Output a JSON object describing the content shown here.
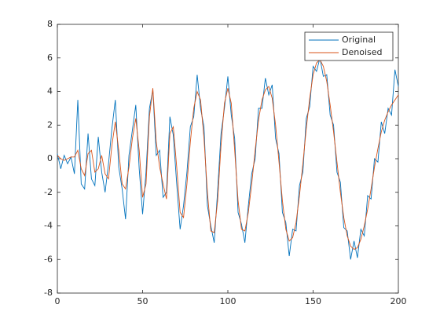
{
  "chart_data": {
    "type": "line",
    "x": [
      0,
      2,
      4,
      6,
      8,
      10,
      12,
      14,
      16,
      18,
      20,
      22,
      24,
      26,
      28,
      30,
      32,
      34,
      36,
      38,
      40,
      42,
      44,
      46,
      48,
      50,
      52,
      54,
      56,
      58,
      60,
      62,
      64,
      66,
      68,
      70,
      72,
      74,
      76,
      78,
      80,
      82,
      84,
      86,
      88,
      90,
      92,
      94,
      96,
      98,
      100,
      102,
      104,
      106,
      108,
      110,
      112,
      114,
      116,
      118,
      120,
      122,
      124,
      126,
      128,
      130,
      132,
      134,
      136,
      138,
      140,
      142,
      144,
      146,
      148,
      150,
      152,
      154,
      156,
      158,
      160,
      162,
      164,
      166,
      168,
      170,
      172,
      174,
      176,
      178,
      180,
      182,
      184,
      186,
      188,
      190,
      192,
      194,
      196,
      198,
      200
    ],
    "series": [
      {
        "name": "Original",
        "color": "#0072bd",
        "values": [
          0.3,
          -0.6,
          0.2,
          -0.3,
          0.1,
          -0.9,
          3.5,
          -1.5,
          -1.8,
          1.5,
          -1.2,
          -1.6,
          1.3,
          -0.8,
          -2.0,
          -0.3,
          1.8,
          3.5,
          -0.5,
          -1.8,
          -3.6,
          0.2,
          1.7,
          3.2,
          -0.6,
          -3.3,
          -0.8,
          3.0,
          4.1,
          0.2,
          0.5,
          -2.3,
          -2.0,
          2.5,
          1.4,
          -1.5,
          -4.2,
          -2.8,
          -0.8,
          1.9,
          2.5,
          5.0,
          3.0,
          1.9,
          -2.8,
          -4.0,
          -5.0,
          -1.9,
          1.5,
          3.0,
          4.9,
          2.6,
          1.2,
          -3.2,
          -3.9,
          -5.0,
          -2.8,
          -0.9,
          0.0,
          3.0,
          3.0,
          4.8,
          3.8,
          4.4,
          1.2,
          0.3,
          -3.2,
          -3.8,
          -5.8,
          -4.2,
          -4.3,
          -1.6,
          -0.8,
          2.4,
          3.1,
          5.5,
          5.2,
          6.0,
          4.9,
          5.0,
          2.6,
          2.0,
          -0.8,
          -1.4,
          -4.1,
          -4.3,
          -6.0,
          -4.9,
          -5.9,
          -4.2,
          -4.6,
          -2.2,
          -2.4,
          0.0,
          -0.2,
          2.2,
          1.5,
          3.0,
          2.6,
          5.3,
          4.3
        ]
      },
      {
        "name": "Denoised",
        "color": "#d95319",
        "values": [
          0.2,
          0,
          -0.1,
          0,
          0.1,
          0.1,
          0.5,
          -0.6,
          -1.0,
          0.3,
          0.5,
          -0.8,
          -0.6,
          0.2,
          -0.9,
          -1.2,
          0.8,
          2.2,
          0.5,
          -1.5,
          -1.8,
          -0.5,
          1.2,
          2.4,
          0.5,
          -2.3,
          -1.5,
          2.5,
          4.2,
          1.0,
          -0.5,
          -1.5,
          -2.4,
          1.5,
          1.9,
          -0.5,
          -3.2,
          -3.5,
          -1.5,
          1.0,
          3.0,
          4.0,
          3.5,
          1.2,
          -2.0,
          -4.3,
          -4.4,
          -2.5,
          0.8,
          3.3,
          4.2,
          3.3,
          0.5,
          -2.5,
          -4.2,
          -4.3,
          -3.2,
          -1.5,
          0.5,
          2.3,
          3.5,
          4.1,
          4.3,
          3.6,
          2.0,
          -0.2,
          -2.5,
          -4.2,
          -4.9,
          -4.7,
          -3.8,
          -2.2,
          -0.3,
          1.8,
          3.6,
          5.0,
          5.7,
          5.9,
          5.5,
          4.6,
          3.2,
          1.6,
          -0.2,
          -2.0,
          -3.5,
          -4.6,
          -5.2,
          -5.4,
          -5.3,
          -4.8,
          -4.0,
          -3.0,
          -1.8,
          -0.5,
          0.6,
          1.6,
          2.3,
          2.8,
          3.2,
          3.5,
          3.8
        ]
      }
    ],
    "xlim": [
      0,
      200
    ],
    "xticks": [
      0,
      50,
      100,
      150,
      200
    ],
    "ylim": [
      -8,
      8
    ],
    "yticks": [
      -8,
      -6,
      -4,
      -2,
      0,
      2,
      4,
      6,
      8
    ],
    "legend": "northeast"
  }
}
